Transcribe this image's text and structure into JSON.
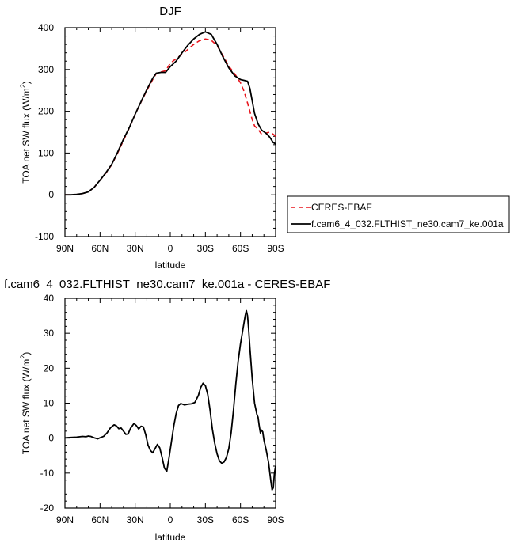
{
  "chart_data": [
    {
      "type": "line",
      "title": "DJF",
      "xlabel": "latitude",
      "ylabel": "TOA net SW flux (W/m²)",
      "x_ticks": [
        -90,
        -60,
        -30,
        0,
        30,
        60,
        90
      ],
      "x_tick_labels": [
        "90N",
        "60N",
        "30N",
        "0",
        "30S",
        "60S",
        "90S"
      ],
      "xlim": [
        -90,
        90
      ],
      "ylim": [
        -100,
        400
      ],
      "y_ticks": [
        -100,
        0,
        100,
        200,
        300,
        400
      ],
      "y_tick_labels": [
        "-100",
        "0",
        "100",
        "200",
        "300",
        "400"
      ],
      "legend_position": "right",
      "series": [
        {
          "name": "CERES-EBAF",
          "color": "#e8141c",
          "dash": "dashed",
          "points": [
            [
              -90,
              0
            ],
            [
              -85,
              0
            ],
            [
              -80,
              1
            ],
            [
              -75,
              3
            ],
            [
              -70,
              7
            ],
            [
              -65,
              18
            ],
            [
              -60,
              35
            ],
            [
              -55,
              52
            ],
            [
              -50,
              72
            ],
            [
              -45,
              100
            ],
            [
              -40,
              130
            ],
            [
              -35,
              160
            ],
            [
              -30,
              193
            ],
            [
              -25,
              222
            ],
            [
              -20,
              250
            ],
            [
              -15,
              276
            ],
            [
              -12,
              290
            ],
            [
              -8,
              294
            ],
            [
              -4,
              297
            ],
            [
              0,
              315
            ],
            [
              5,
              326
            ],
            [
              10,
              336
            ],
            [
              15,
              348
            ],
            [
              20,
              360
            ],
            [
              25,
              369
            ],
            [
              30,
              373
            ],
            [
              35,
              370
            ],
            [
              40,
              357
            ],
            [
              45,
              333
            ],
            [
              50,
              308
            ],
            [
              55,
              290
            ],
            [
              60,
              268
            ],
            [
              63,
              248
            ],
            [
              66,
              220
            ],
            [
              70,
              180
            ],
            [
              72,
              165
            ],
            [
              75,
              157
            ],
            [
              78,
              145
            ],
            [
              82,
              148
            ],
            [
              85,
              150
            ],
            [
              88,
              145
            ],
            [
              90,
              140
            ]
          ]
        },
        {
          "name": "f.cam6_4_032.FLTHIST_ne30.cam7_ke.001a",
          "color": "#000000",
          "dash": "solid",
          "points": [
            [
              -90,
              0
            ],
            [
              -85,
              0
            ],
            [
              -80,
              1
            ],
            [
              -75,
              3
            ],
            [
              -70,
              7
            ],
            [
              -65,
              18
            ],
            [
              -60,
              35
            ],
            [
              -55,
              53
            ],
            [
              -50,
              73
            ],
            [
              -45,
              102
            ],
            [
              -40,
              133
            ],
            [
              -35,
              161
            ],
            [
              -30,
              193
            ],
            [
              -25,
              223
            ],
            [
              -20,
              252
            ],
            [
              -15,
              279
            ],
            [
              -12,
              291
            ],
            [
              -8,
              293
            ],
            [
              -4,
              293
            ],
            [
              -2,
              300
            ],
            [
              0,
              307
            ],
            [
              5,
              320
            ],
            [
              10,
              340
            ],
            [
              15,
              358
            ],
            [
              20,
              373
            ],
            [
              25,
              384
            ],
            [
              30,
              390
            ],
            [
              35,
              384
            ],
            [
              40,
              360
            ],
            [
              45,
              330
            ],
            [
              50,
              304
            ],
            [
              55,
              285
            ],
            [
              60,
              276
            ],
            [
              63,
              274
            ],
            [
              66,
              272
            ],
            [
              68,
              255
            ],
            [
              70,
              225
            ],
            [
              72,
              195
            ],
            [
              75,
              170
            ],
            [
              78,
              155
            ],
            [
              82,
              147
            ],
            [
              85,
              138
            ],
            [
              88,
              125
            ],
            [
              90,
              122
            ]
          ]
        }
      ]
    },
    {
      "type": "line",
      "title": "f.cam6_4_032.FLTHIST_ne30.cam7_ke.001a - CERES-EBAF",
      "xlabel": "latitude",
      "ylabel": "TOA net SW flux (W/m²)",
      "x_ticks": [
        -90,
        -60,
        -30,
        0,
        30,
        60,
        90
      ],
      "x_tick_labels": [
        "90N",
        "60N",
        "30N",
        "0",
        "30S",
        "60S",
        "90S"
      ],
      "xlim": [
        -90,
        90
      ],
      "ylim": [
        -20,
        40
      ],
      "y_ticks": [
        -20,
        -10,
        0,
        10,
        20,
        30,
        40
      ],
      "y_tick_labels": [
        "-20",
        "-10",
        "0",
        "10",
        "20",
        "30",
        "40"
      ],
      "series": [
        {
          "name": "",
          "color": "#000000",
          "dash": "solid",
          "points": [
            [
              -90,
              0.1
            ],
            [
              -85,
              0.2
            ],
            [
              -80,
              0.3
            ],
            [
              -75,
              0.5
            ],
            [
              -72,
              0.4
            ],
            [
              -70,
              0.6
            ],
            [
              -68,
              0.5
            ],
            [
              -65,
              0.1
            ],
            [
              -62,
              -0.2
            ],
            [
              -60,
              0.1
            ],
            [
              -57,
              0.5
            ],
            [
              -54,
              1.5
            ],
            [
              -51,
              3.0
            ],
            [
              -48,
              3.8
            ],
            [
              -46,
              3.5
            ],
            [
              -44,
              2.7
            ],
            [
              -42,
              2.9
            ],
            [
              -40,
              2.0
            ],
            [
              -38,
              1.1
            ],
            [
              -36,
              1.2
            ],
            [
              -34,
              2.8
            ],
            [
              -31,
              4.2
            ],
            [
              -29,
              3.6
            ],
            [
              -27,
              2.6
            ],
            [
              -25,
              3.4
            ],
            [
              -23,
              3.2
            ],
            [
              -21,
              1.0
            ],
            [
              -19,
              -2.0
            ],
            [
              -17,
              -3.5
            ],
            [
              -15,
              -4.2
            ],
            [
              -13,
              -3.0
            ],
            [
              -11,
              -1.8
            ],
            [
              -9,
              -2.8
            ],
            [
              -7,
              -5.5
            ],
            [
              -5,
              -8.6
            ],
            [
              -3,
              -9.5
            ],
            [
              -1,
              -5.5
            ],
            [
              1,
              -1.0
            ],
            [
              3,
              3.5
            ],
            [
              5,
              7.0
            ],
            [
              7,
              9.3
            ],
            [
              9,
              9.9
            ],
            [
              12,
              9.5
            ],
            [
              15,
              9.7
            ],
            [
              18,
              9.8
            ],
            [
              21,
              10.2
            ],
            [
              24,
              12.2
            ],
            [
              26,
              14.5
            ],
            [
              28,
              15.7
            ],
            [
              30,
              15.0
            ],
            [
              32,
              12.5
            ],
            [
              34,
              8.0
            ],
            [
              36,
              2.5
            ],
            [
              38,
              -1.5
            ],
            [
              40,
              -4.5
            ],
            [
              42,
              -6.5
            ],
            [
              44,
              -7.2
            ],
            [
              46,
              -6.8
            ],
            [
              48,
              -5.5
            ],
            [
              50,
              -3.0
            ],
            [
              52,
              1.5
            ],
            [
              54,
              8.0
            ],
            [
              56,
              15.5
            ],
            [
              58,
              22.0
            ],
            [
              60,
              27.0
            ],
            [
              62,
              31.0
            ],
            [
              64,
              35.0
            ],
            [
              65,
              36.5
            ],
            [
              66,
              35.0
            ],
            [
              67,
              31.0
            ],
            [
              68,
              26.0
            ],
            [
              70,
              17.0
            ],
            [
              72,
              10.0
            ],
            [
              74,
              6.8
            ],
            [
              75,
              6.0
            ],
            [
              76,
              3.5
            ],
            [
              77,
              1.5
            ],
            [
              78,
              2.3
            ],
            [
              79,
              1.8
            ],
            [
              80,
              -0.5
            ],
            [
              82,
              -3.5
            ],
            [
              84,
              -7.0
            ],
            [
              86,
              -12.5
            ],
            [
              87,
              -14.8
            ],
            [
              88,
              -14.2
            ],
            [
              89,
              -10.0
            ],
            [
              90,
              -8.0
            ]
          ]
        }
      ]
    }
  ]
}
